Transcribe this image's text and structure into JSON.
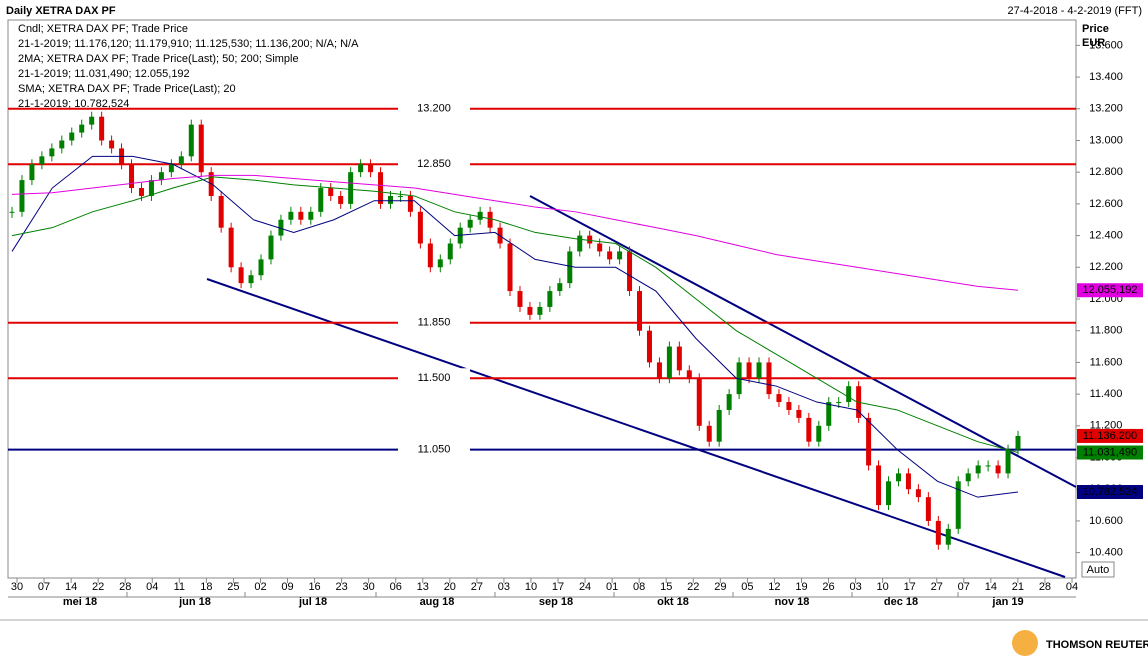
{
  "chart_data": {
    "type": "candlestick",
    "title": "Daily XETRA DAX PF",
    "date_range": "27-4-2018 - 4-2-2019 (FFT)",
    "axis_title": "Price",
    "axis_unit": "EUR",
    "auto_label": "Auto",
    "brand": "THOMSON REUTERS",
    "legend": [
      {
        "text": "Cndl; XETRA DAX PF; Trade Price",
        "color": "#e00000"
      },
      {
        "text": "21-1-2019; 11.176,120; 11.179,910; 11.125,530; 11.136,200; N/A; N/A",
        "color": "#e00000"
      },
      {
        "text": "2MA; XETRA DAX PF; Trade Price(Last);  50; 200; Simple",
        "color": "#008000"
      },
      {
        "text": "21-1-2019; 11.031,490; 12.055,192",
        "color": "#008000"
      },
      {
        "text": "SMA; XETRA DAX PF; Trade Price(Last);  20",
        "color": "#000080"
      },
      {
        "text": "21-1-2019; 10.782,524",
        "color": "#000080"
      }
    ],
    "ylim": [
      10240,
      13760
    ],
    "yticks": [
      {
        "value": 10400,
        "label": "10.400"
      },
      {
        "value": 10600,
        "label": "10.600"
      },
      {
        "value": 10800,
        "label": "10.800"
      },
      {
        "value": 11000,
        "label": "11.000"
      },
      {
        "value": 11200,
        "label": "11.200"
      },
      {
        "value": 11400,
        "label": "11.400"
      },
      {
        "value": 11600,
        "label": "11.600"
      },
      {
        "value": 11800,
        "label": "11.800"
      },
      {
        "value": 12000,
        "label": "12.000"
      },
      {
        "value": 12200,
        "label": "12.200"
      },
      {
        "value": 12400,
        "label": "12.400"
      },
      {
        "value": 12600,
        "label": "12.600"
      },
      {
        "value": 12800,
        "label": "12.800"
      },
      {
        "value": 13000,
        "label": "13.000"
      },
      {
        "value": 13200,
        "label": "13.200"
      },
      {
        "value": 13400,
        "label": "13.400"
      },
      {
        "value": 13600,
        "label": "13.600"
      }
    ],
    "xticks": [
      "30",
      "07",
      "14",
      "22",
      "28",
      "04",
      "11",
      "18",
      "25",
      "02",
      "09",
      "16",
      "23",
      "30",
      "06",
      "13",
      "20",
      "27",
      "03",
      "10",
      "17",
      "24",
      "01",
      "08",
      "15",
      "22",
      "29",
      "05",
      "12",
      "19",
      "26",
      "03",
      "10",
      "17",
      "27",
      "07",
      "14",
      "21",
      "28",
      "04"
    ],
    "months": [
      "mei 18",
      "jun 18",
      "jul 18",
      "aug 18",
      "sep 18",
      "okt 18",
      "nov 18",
      "dec 18",
      "jan 19"
    ],
    "levels": [
      {
        "value": 13200,
        "label": "13.200",
        "color": "#e00000"
      },
      {
        "value": 12850,
        "label": "12.850",
        "color": "#e00000"
      },
      {
        "value": 11850,
        "label": "11.850",
        "color": "#e00000"
      },
      {
        "value": 11500,
        "label": "11.500",
        "color": "#e00000"
      },
      {
        "value": 11050,
        "label": "11.050",
        "color": "#000080"
      }
    ],
    "closes": [
      12550,
      12750,
      12850,
      12900,
      12950,
      13000,
      13050,
      13100,
      13150,
      13000,
      12950,
      12850,
      12700,
      12650,
      12750,
      12800,
      12850,
      12900,
      13100,
      12800,
      12650,
      12450,
      12200,
      12100,
      12150,
      12250,
      12400,
      12500,
      12550,
      12500,
      12550,
      12700,
      12650,
      12600,
      12800,
      12850,
      12800,
      12600,
      12650,
      12650,
      12550,
      12350,
      12200,
      12250,
      12350,
      12450,
      12500,
      12550,
      12450,
      12350,
      12050,
      11950,
      11900,
      11950,
      12050,
      12100,
      12300,
      12400,
      12350,
      12300,
      12250,
      12300,
      12050,
      11800,
      11600,
      11500,
      11700,
      11550,
      11500,
      11200,
      11100,
      11300,
      11400,
      11600,
      11500,
      11600,
      11400,
      11350,
      11300,
      11250,
      11100,
      11200,
      11350,
      11350,
      11450,
      11250,
      10950,
      10700,
      10850,
      10900,
      10800,
      10750,
      10600,
      10450,
      10550,
      10850,
      10900,
      10950,
      10950,
      10900,
      11050,
      11136.2
    ],
    "series": [
      {
        "name": "SMA 20",
        "color": "#000080",
        "values": [
          12300,
          12700,
          12900,
          12900,
          12850,
          12720,
          12500,
          12420,
          12500,
          12620,
          12620,
          12400,
          12420,
          12250,
          12200,
          12200,
          12050,
          11750,
          11500,
          11450,
          11350,
          11300,
          11050,
          10850,
          10750,
          10782.524
        ],
        "value_label": "10.782,524"
      },
      {
        "name": "MA 50",
        "color": "#008000",
        "values": [
          12400,
          12450,
          12550,
          12620,
          12700,
          12770,
          12750,
          12720,
          12700,
          12680,
          12650,
          12550,
          12500,
          12420,
          12380,
          12350,
          12200,
          12000,
          11800,
          11650,
          11500,
          11350,
          11300,
          11200,
          11100,
          11031.49
        ],
        "value_label": "11.031,490"
      },
      {
        "name": "MA 200",
        "color": "#e000e0",
        "values": [
          12660,
          12670,
          12700,
          12730,
          12760,
          12780,
          12780,
          12760,
          12740,
          12720,
          12700,
          12660,
          12620,
          12580,
          12550,
          12500,
          12450,
          12400,
          12340,
          12280,
          12240,
          12200,
          12160,
          12120,
          12080,
          12055.192
        ],
        "value_label": "12.055,192"
      }
    ],
    "last_close_label": "11.136,200"
  }
}
